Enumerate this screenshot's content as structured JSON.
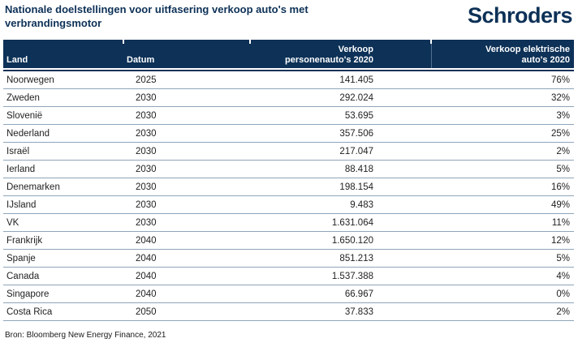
{
  "page": {
    "title": "Nationale doelstellingen voor uitfasering verkoop auto's met verbrandingsmotor",
    "logo_text": "Schroders",
    "source": "Bron: Bloomberg New Energy Finance, 2021"
  },
  "colors": {
    "navy": "#0d3157",
    "row_divider": "#8fa5ba",
    "header_text": "#ffffff",
    "body_text": "#1f1f1f"
  },
  "chart_data": {
    "type": "table",
    "title": "Nationale doelstellingen voor uitfasering verkoop auto's met verbrandingsmotor",
    "legend_position": "none",
    "columns": [
      {
        "label": "Land",
        "align": "left"
      },
      {
        "label": "Datum",
        "align": "left"
      },
      {
        "label": "Verkoop\npersonenauto's 2020",
        "align": "right"
      },
      {
        "label": "Verkoop elektrische\nauto's 2020",
        "align": "right"
      }
    ],
    "rows": [
      [
        "Noorwegen",
        "2025",
        "141.405",
        "76%"
      ],
      [
        "Zweden",
        "2030",
        "292.024",
        "32%"
      ],
      [
        "Slovenië",
        "2030",
        "53.695",
        "3%"
      ],
      [
        "Nederland",
        "2030",
        "357.506",
        "25%"
      ],
      [
        "Israël",
        "2030",
        "217.047",
        "2%"
      ],
      [
        "Ierland",
        "2030",
        "88.418",
        "5%"
      ],
      [
        "Denemarken",
        "2030",
        "198.154",
        "16%"
      ],
      [
        "IJsland",
        "2030",
        "9.483",
        "49%"
      ],
      [
        "VK",
        "2030",
        "1.631.064",
        "11%"
      ],
      [
        "Frankrijk",
        "2040",
        "1.650.120",
        "12%"
      ],
      [
        "Spanje",
        "2040",
        "851.213",
        "5%"
      ],
      [
        "Canada",
        "2040",
        "1.537.388",
        "4%"
      ],
      [
        "Singapore",
        "2040",
        "66.967",
        "0%"
      ],
      [
        "Costa Rica",
        "2050",
        "37.833",
        "2%"
      ]
    ],
    "source": "Bron: Bloomberg New Energy Finance, 2021"
  }
}
